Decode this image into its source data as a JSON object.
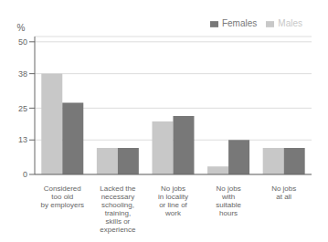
{
  "chart_data": {
    "type": "bar",
    "categories": [
      "Considered\ntoo old\nby employers",
      "Lacked the\nnecessary\nschooling,\ntraining,\nskills or\nexperience",
      "No jobs\nin locality\nor line of\nwork",
      "No jobs\nwith\nsuitable\nhours",
      "No jobs\nat all"
    ],
    "series": [
      {
        "name": "Males",
        "color": "#c8c8c8",
        "values": [
          38,
          10,
          20,
          3,
          10
        ]
      },
      {
        "name": "Females",
        "color": "#787878",
        "values": [
          27,
          10,
          22,
          13,
          10
        ]
      }
    ],
    "ylabel": "%",
    "ylim": [
      0,
      52
    ],
    "yticks": [
      0,
      13,
      25,
      38,
      50
    ],
    "grid": true,
    "legend": "upper right"
  }
}
